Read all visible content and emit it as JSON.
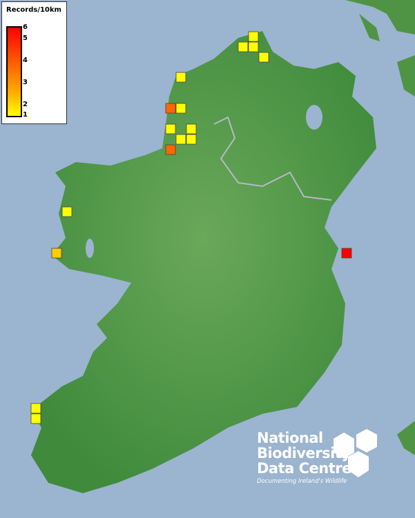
{
  "legend": {
    "title": "Records/10km",
    "ticks": [
      "6",
      "5",
      "4",
      "3",
      "2",
      "1"
    ],
    "colors": {
      "low": "#ffff00",
      "high": "#ff0000"
    }
  },
  "records": [
    1,
    1,
    1,
    1,
    1,
    4,
    1,
    1,
    1,
    1,
    1,
    4,
    1,
    2,
    6,
    1,
    1
  ],
  "colors": {
    "sea": "#9bb4cf",
    "land": "#5a9e4a",
    "border": "#b8b8c8"
  },
  "logo": {
    "line1": "National",
    "line2": "Biodiversity",
    "line3": "Data Centre",
    "tagline": "Documenting Ireland's Wildlife"
  }
}
